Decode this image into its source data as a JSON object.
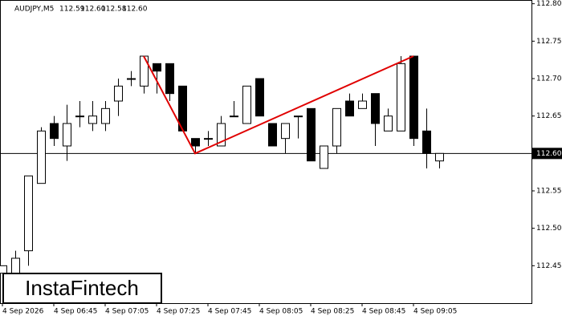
{
  "chart_data": {
    "type": "candlestick",
    "title": "AUDJPY,M5",
    "header_values": [
      "112.59",
      "112.60",
      "112.58",
      "112.60"
    ],
    "categories": [
      "4 Sep 2026",
      null,
      null,
      null,
      "4 Sep 06:45",
      null,
      null,
      null,
      "4 Sep 07:05",
      null,
      null,
      null,
      "4 Sep 07:25",
      null,
      null,
      null,
      "4 Sep 07:45",
      null,
      null,
      null,
      "4 Sep 08:05",
      null,
      null,
      null,
      "4 Sep 08:25",
      null,
      null,
      null,
      "4 Sep 08:45",
      null,
      null,
      null,
      "4 Sep 09:05",
      null,
      null
    ],
    "series": [
      {
        "open": [
          112.44,
          112.44,
          112.47,
          112.56,
          112.64,
          112.61,
          112.65,
          112.64,
          112.64,
          112.67,
          112.7,
          112.69,
          112.72,
          112.72,
          112.69,
          112.62,
          112.62,
          112.61,
          112.65,
          112.64,
          112.7,
          112.64,
          112.62,
          112.65,
          112.66,
          112.58,
          112.61,
          112.67,
          112.66,
          112.68,
          112.63,
          112.63,
          112.73,
          112.63,
          112.59
        ],
        "high": [
          112.45,
          112.47,
          112.57,
          112.635,
          112.65,
          112.665,
          112.67,
          112.67,
          112.67,
          112.7,
          112.71,
          112.73,
          112.72,
          112.72,
          112.69,
          112.62,
          112.63,
          112.65,
          112.67,
          112.69,
          112.7,
          112.64,
          112.64,
          112.65,
          112.66,
          112.61,
          112.66,
          112.68,
          112.68,
          112.68,
          112.66,
          112.73,
          112.73,
          112.66,
          112.6
        ],
        "low": [
          112.43,
          112.44,
          112.45,
          112.56,
          112.61,
          112.59,
          112.635,
          112.63,
          112.63,
          112.65,
          112.69,
          112.68,
          112.68,
          112.67,
          112.63,
          112.6,
          112.61,
          112.61,
          112.65,
          112.64,
          112.65,
          112.61,
          112.6,
          112.62,
          112.59,
          112.58,
          112.6,
          112.65,
          112.66,
          112.61,
          112.63,
          112.63,
          112.61,
          112.58,
          112.58
        ],
        "close": [
          112.45,
          112.46,
          112.57,
          112.63,
          112.62,
          112.64,
          112.65,
          112.65,
          112.66,
          112.69,
          112.7,
          112.73,
          112.71,
          112.68,
          112.63,
          112.61,
          112.62,
          112.64,
          112.65,
          112.69,
          112.65,
          112.61,
          112.64,
          112.65,
          112.59,
          112.61,
          112.66,
          112.65,
          112.67,
          112.64,
          112.65,
          112.72,
          112.62,
          112.6,
          112.6
        ],
        "up_color": "#ffffff",
        "down_color": "#000000",
        "outline": "#000000"
      }
    ],
    "ylim": [
      112.4,
      112.805
    ],
    "yticks": [
      {
        "value": 112.45,
        "label": "112.45"
      },
      {
        "value": 112.5,
        "label": "112.50"
      },
      {
        "value": 112.55,
        "label": "112.55"
      },
      {
        "value": 112.6,
        "label": "112.60"
      },
      {
        "value": 112.65,
        "label": "112.65"
      },
      {
        "value": 112.7,
        "label": "112.70"
      },
      {
        "value": 112.75,
        "label": "112.75"
      },
      {
        "value": 112.8,
        "label": "112.80"
      }
    ],
    "current_price": {
      "value": 112.6,
      "label": "112.60"
    },
    "pattern": {
      "color": "#e00000",
      "x": [
        11,
        15,
        32
      ],
      "values": [
        112.73,
        112.6,
        112.73
      ]
    },
    "logo": "InstaFintech"
  }
}
